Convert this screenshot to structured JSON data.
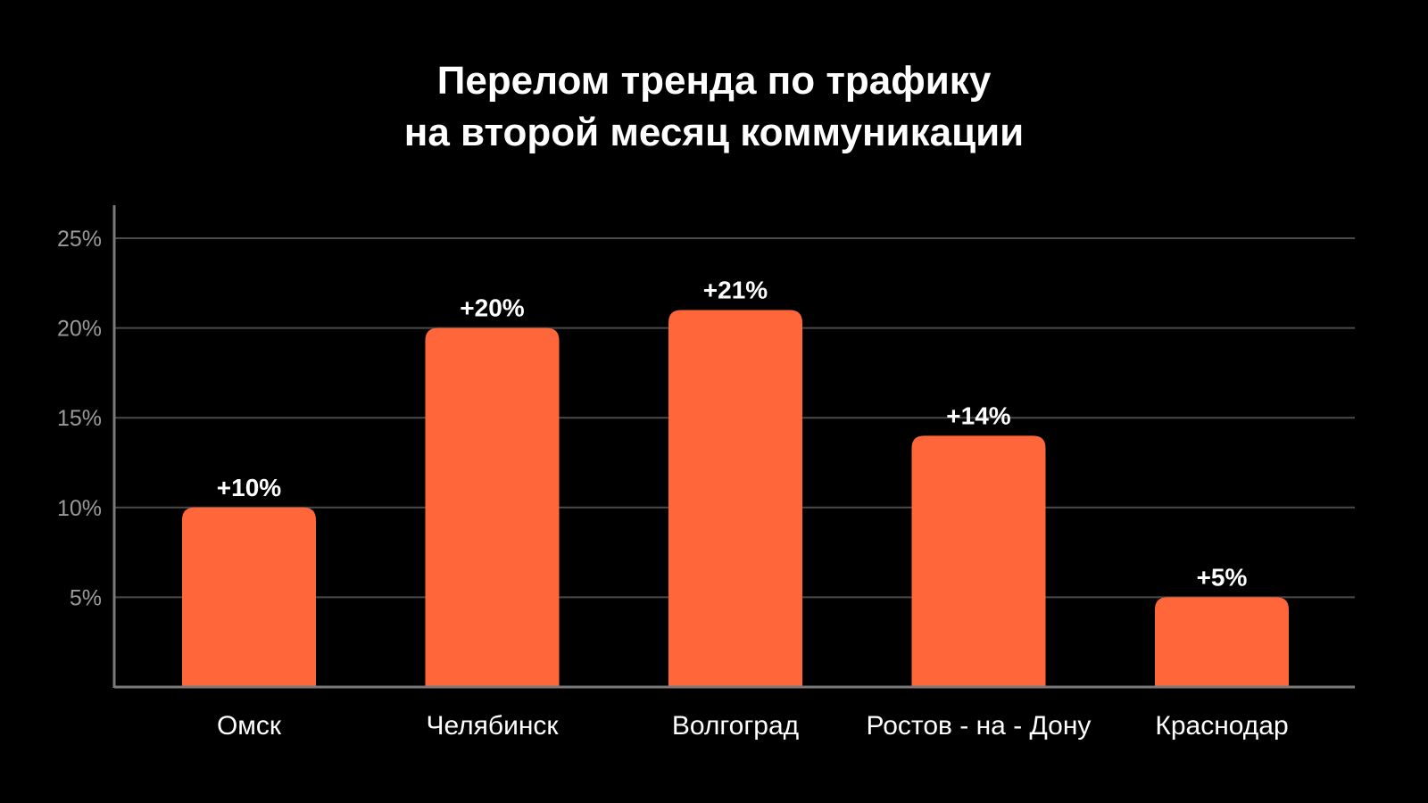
{
  "chart_data": {
    "type": "bar",
    "title_lines": [
      "Перелом тренда по трафику",
      "на второй месяц коммуникации"
    ],
    "categories": [
      "Омск",
      "Челябинск",
      "Волгоград",
      "Ростов - на - Дону",
      "Краснодар"
    ],
    "values": [
      10,
      20,
      21,
      14,
      5
    ],
    "data_labels": [
      "+10%",
      "+20%",
      "+21%",
      "+14%",
      "+5%"
    ],
    "y_ticks": [
      5,
      10,
      15,
      20,
      25
    ],
    "y_tick_labels": [
      "5%",
      "10%",
      "15%",
      "20%",
      "25%"
    ],
    "ylim": [
      0,
      25
    ],
    "grid": true,
    "colors": {
      "bar": "#FF673A",
      "background": "#000000",
      "grid": "#4a4a4a",
      "axis": "#7a7a7a"
    }
  }
}
